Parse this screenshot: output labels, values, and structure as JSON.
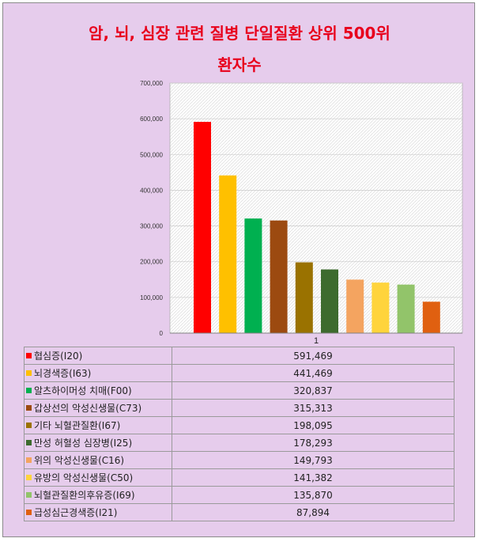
{
  "title_line1": "암, 뇌, 심장 관련 질병 단일질환 상위 500위",
  "title_line2": "환자수",
  "chart_data": {
    "type": "bar",
    "categories": [
      "1"
    ],
    "ylim": [
      0,
      700000
    ],
    "yticks": [
      "0",
      "100,000",
      "200,000",
      "300,000",
      "400,000",
      "500,000",
      "600,000",
      "700,000"
    ],
    "grid": true,
    "series": [
      {
        "name": "협심증(I20)",
        "value": 591469,
        "value_label": "591,469",
        "color": "#ff0000"
      },
      {
        "name": "뇌경색증(I63)",
        "value": 441469,
        "value_label": "441,469",
        "color": "#ffc000"
      },
      {
        "name": "알츠하이머성 치매(F00)",
        "value": 320837,
        "value_label": "320,837",
        "color": "#00b050"
      },
      {
        "name": "갑상선의 악성신생물(C73)",
        "value": 315313,
        "value_label": "315,313",
        "color": "#9c4a10"
      },
      {
        "name": "기타 뇌혈관질환(I67)",
        "value": 198095,
        "value_label": "198,095",
        "color": "#9a7200"
      },
      {
        "name": "만성 허혈성 심장병(I25)",
        "value": 178293,
        "value_label": "178,293",
        "color": "#3d6b2e"
      },
      {
        "name": "위의 악성신생물(C16)",
        "value": 149793,
        "value_label": "149,793",
        "color": "#f4a460"
      },
      {
        "name": "유방의 악성신생물(C50)",
        "value": 141382,
        "value_label": "141,382",
        "color": "#ffd43c"
      },
      {
        "name": "뇌혈관질환의후유증(I69)",
        "value": 135870,
        "value_label": "135,870",
        "color": "#92c46a"
      },
      {
        "name": "급성심근경색증(I21)",
        "value": 87894,
        "value_label": "87,894",
        "color": "#e06010"
      }
    ]
  }
}
